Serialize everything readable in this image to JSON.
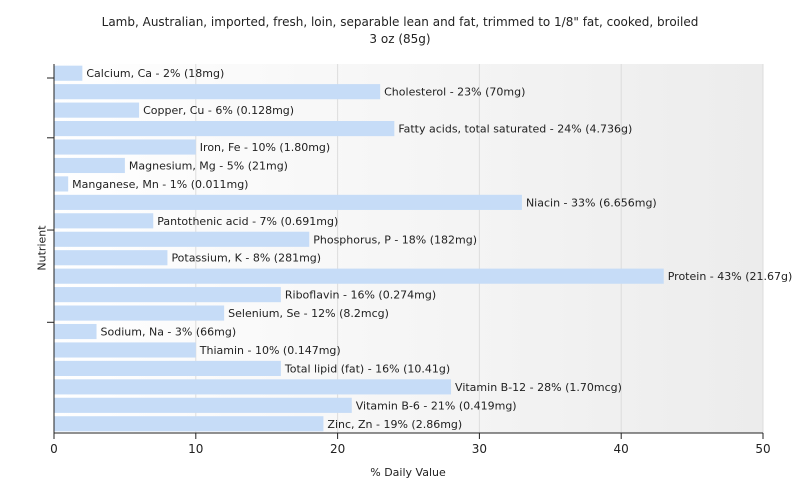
{
  "chart_data": {
    "type": "bar",
    "orientation": "horizontal",
    "title": "Lamb, Australian, imported, fresh, loin, separable lean and fat, trimmed to 1/8\" fat, cooked, broiled",
    "subtitle": "3 oz (85g)",
    "xlabel": "% Daily Value",
    "ylabel": "Nutrient",
    "xlim": [
      0,
      50
    ],
    "xticks": [
      0,
      10,
      20,
      30,
      40,
      50
    ],
    "grid": true,
    "bar_color": "#c6dcf7",
    "categories": [
      "Calcium, Ca",
      "Cholesterol",
      "Copper, Cu",
      "Fatty acids, total saturated",
      "Iron, Fe",
      "Magnesium, Mg",
      "Manganese, Mn",
      "Niacin",
      "Pantothenic acid",
      "Phosphorus, P",
      "Potassium, K",
      "Protein",
      "Riboflavin",
      "Selenium, Se",
      "Sodium, Na",
      "Thiamin",
      "Total lipid (fat)",
      "Vitamin B-12",
      "Vitamin B-6",
      "Zinc, Zn"
    ],
    "values": [
      2,
      23,
      6,
      24,
      10,
      5,
      1,
      33,
      7,
      18,
      8,
      43,
      16,
      12,
      3,
      10,
      16,
      28,
      21,
      19
    ],
    "labels": [
      "Calcium, Ca - 2% (18mg)",
      "Cholesterol - 23% (70mg)",
      "Copper, Cu - 6% (0.128mg)",
      "Fatty acids, total saturated - 24% (4.736g)",
      "Iron, Fe - 10% (1.80mg)",
      "Magnesium, Mg - 5% (21mg)",
      "Manganese, Mn - 1% (0.011mg)",
      "Niacin - 33% (6.656mg)",
      "Pantothenic acid - 7% (0.691mg)",
      "Phosphorus, P - 18% (182mg)",
      "Potassium, K - 8% (281mg)",
      "Protein - 43% (21.67g)",
      "Riboflavin - 16% (0.274mg)",
      "Selenium, Se - 12% (8.2mcg)",
      "Sodium, Na - 3% (66mg)",
      "Thiamin - 10% (0.147mg)",
      "Total lipid (fat) - 16% (10.41g)",
      "Vitamin B-12 - 28% (1.70mcg)",
      "Vitamin B-6 - 21% (0.419mg)",
      "Zinc, Zn - 19% (2.86mg)"
    ]
  }
}
